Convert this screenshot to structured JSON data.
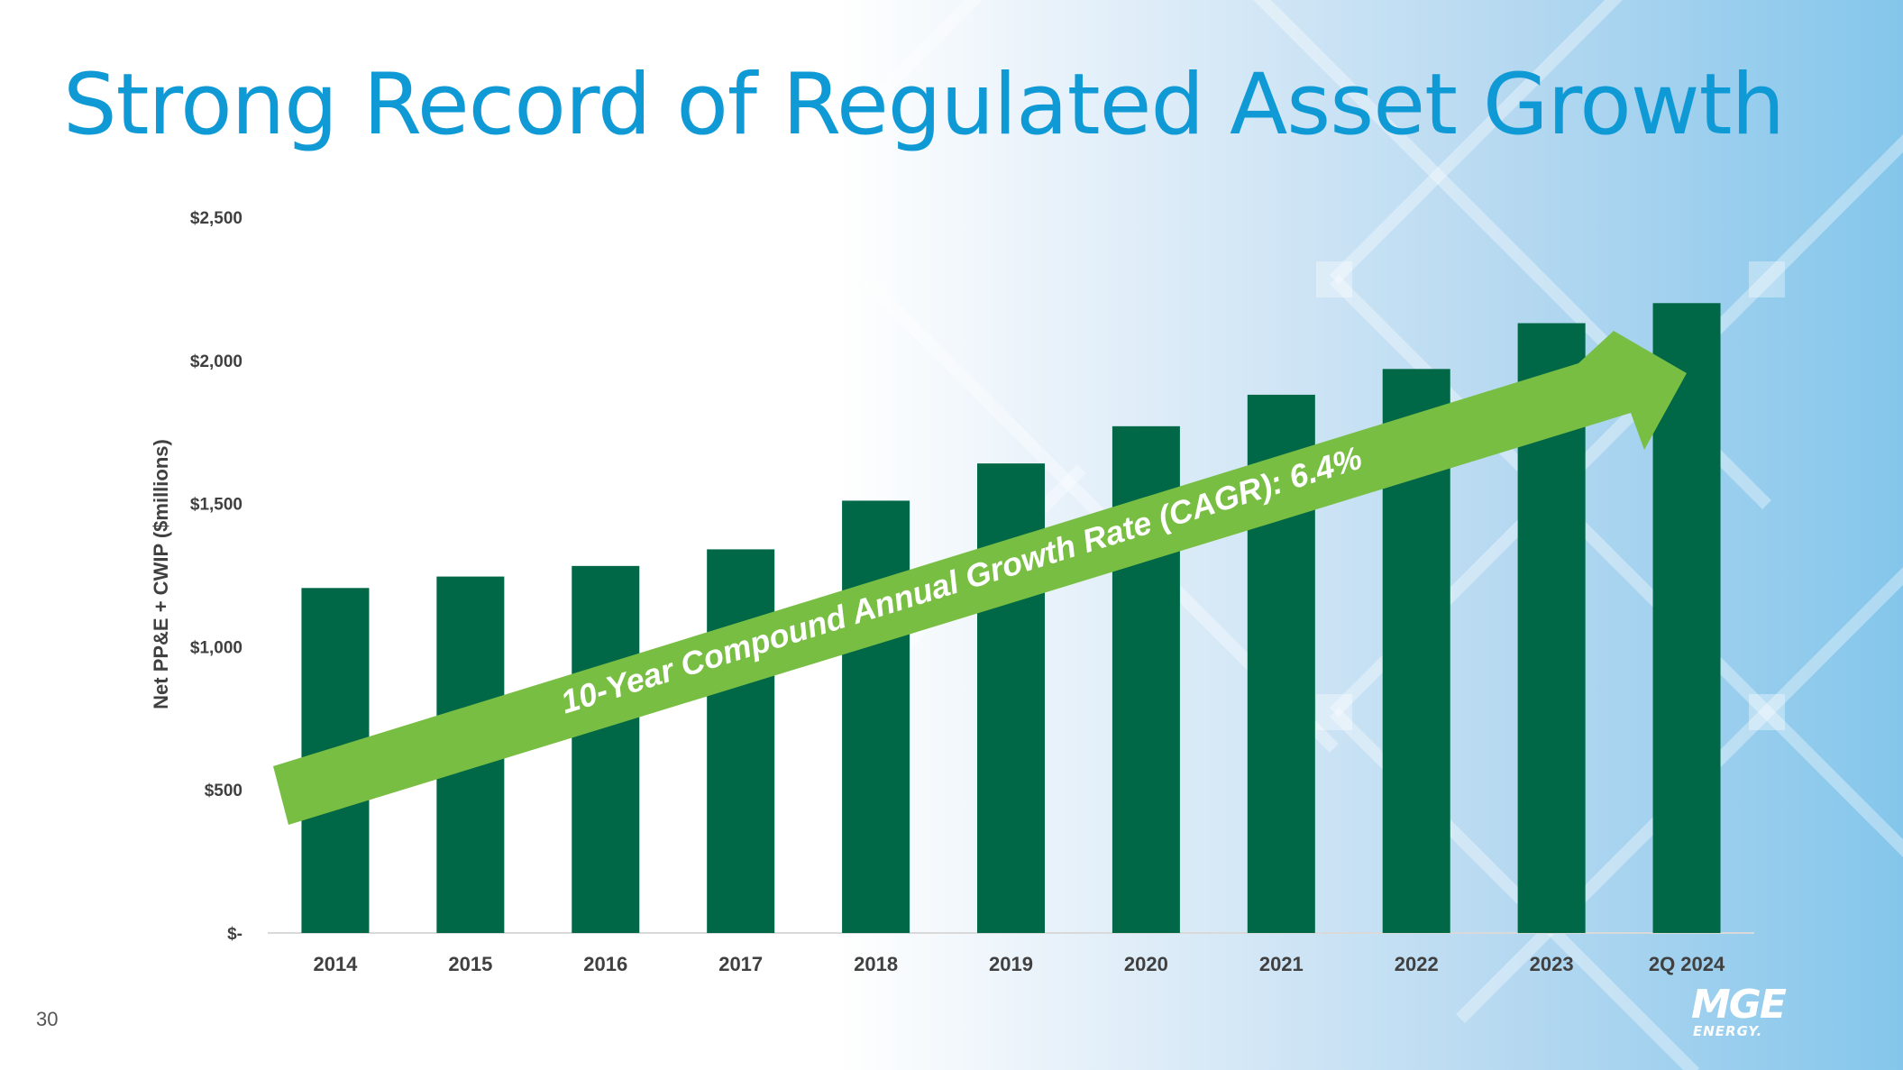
{
  "slide": {
    "title": "Strong Record of Regulated Asset Growth",
    "page_number": "30",
    "logo": {
      "main": "MGE",
      "sub": "ENERGY."
    }
  },
  "colors": {
    "title": "#0f9ad6",
    "bar": "#006847",
    "arrow": "#78be43",
    "arrow_text": "#ffffff",
    "axis_text": "#404040"
  },
  "chart_data": {
    "type": "bar",
    "ylabel": "Net PP&E + CWIP ($millions)",
    "ylim": [
      0,
      2500
    ],
    "yticks": [
      0,
      500,
      1000,
      1500,
      2000,
      2500
    ],
    "ytick_labels": [
      "$-",
      "$500",
      "$1,000",
      "$1,500",
      "$2,000",
      "$2,500"
    ],
    "categories": [
      "2014",
      "2015",
      "2016",
      "2017",
      "2018",
      "2019",
      "2020",
      "2021",
      "2022",
      "2023",
      "2Q 2024"
    ],
    "values": [
      1205,
      1245,
      1282,
      1340,
      1510,
      1640,
      1770,
      1880,
      1970,
      2130,
      2200
    ],
    "grid": false,
    "annotation": "10-Year Compound Annual Growth Rate (CAGR): 6.4%"
  }
}
